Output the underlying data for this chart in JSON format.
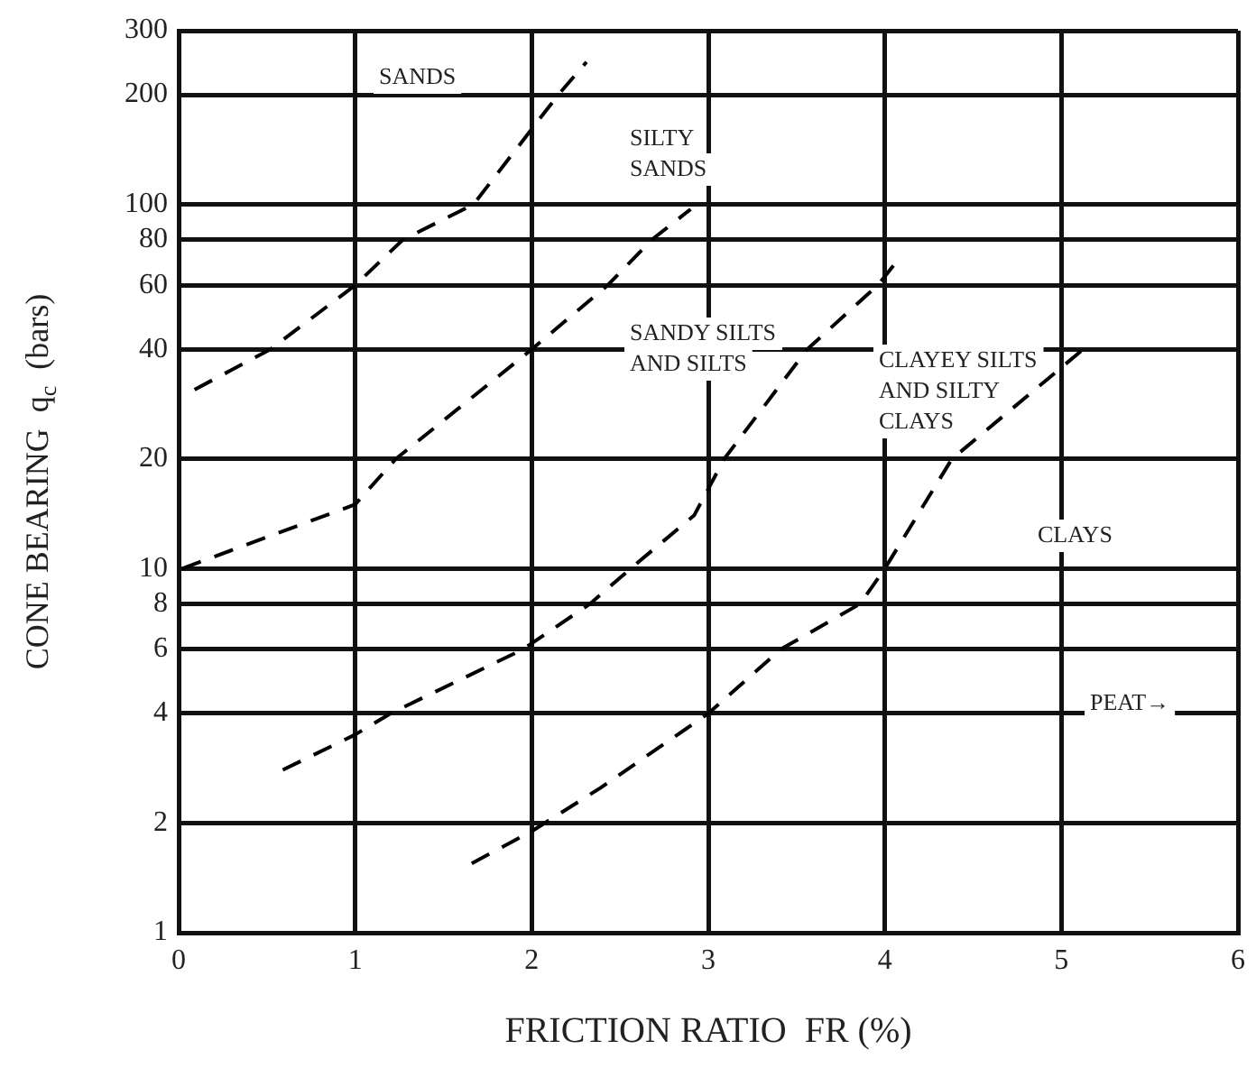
{
  "chart_data": {
    "type": "line",
    "xlabel": "FRICTION RATIO  FR (%)",
    "ylabel": "CONE BEARING  q$_{c}$  (bars)",
    "log": "y",
    "xlim": [
      0,
      6
    ],
    "xticks": [
      0,
      1,
      2,
      3,
      4,
      5,
      6
    ],
    "ylim": [
      1,
      300
    ],
    "yticks": [
      1,
      2,
      4,
      6,
      8,
      10,
      20,
      40,
      60,
      80,
      100,
      200,
      300
    ],
    "grid": true,
    "legend": false,
    "marker": "none",
    "line_style": "dashed",
    "series": [
      {
        "color": "#000000",
        "x": [
          0.09,
          0.52,
          1,
          1.27,
          1.67,
          2.15,
          2.31
        ],
        "values": [
          31,
          40,
          60,
          80,
          100,
          200,
          246
        ]
      },
      {
        "color": "#000000",
        "x": [
          0.02,
          1,
          1.23,
          2,
          2.43,
          2.68,
          2.9
        ],
        "values": [
          10,
          15,
          20,
          40,
          60,
          80,
          97
        ]
      },
      {
        "color": "#000000",
        "x": [
          0.59,
          1,
          1.2,
          1.95,
          2.33,
          2.56,
          2.92,
          3.09,
          3.56,
          3.96,
          4.07
        ],
        "values": [
          2.8,
          3.5,
          4,
          6,
          8,
          10,
          14,
          20,
          40,
          60,
          70
        ]
      },
      {
        "color": "#000000",
        "x": [
          1.66,
          2,
          2.39,
          3,
          3.41,
          3.86,
          4,
          4.38,
          5.15
        ],
        "values": [
          1.55,
          1.9,
          2.5,
          4,
          6,
          8,
          10,
          20,
          41
        ]
      }
    ],
    "annotations": [
      "SANDS",
      "SILTY\nSANDS",
      "SANDY SILTS\nAND SILTS",
      "CLAYEY SILTS\nAND SILTY\nCLAYS",
      "CLAYS",
      "PEAT→"
    ]
  }
}
